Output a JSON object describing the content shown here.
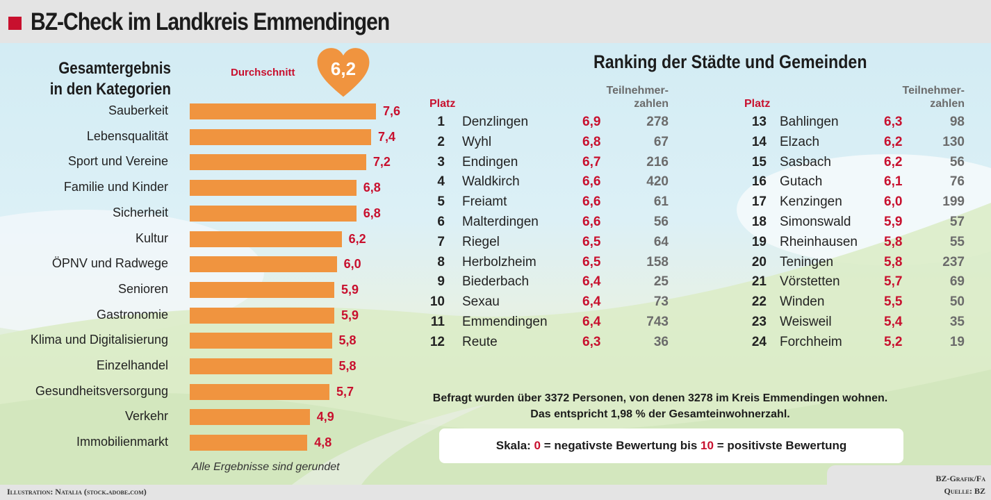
{
  "header": {
    "title": "BZ-Check im Landkreis Emmendingen"
  },
  "left_panel": {
    "title_line1": "Gesamtergebnis",
    "title_line2": "in den Kategorien",
    "average_label": "Durchschnitt",
    "average_value": "6,2",
    "note": "Alle Ergebnisse sind gerundet"
  },
  "chart_data": {
    "type": "bar",
    "orientation": "horizontal",
    "title": "Gesamtergebnis in den Kategorien",
    "xlabel": "",
    "ylabel": "",
    "xlim": [
      0,
      10
    ],
    "average": 6.2,
    "categories": [
      "Sauberkeit",
      "Lebensqualität",
      "Sport und Vereine",
      "Familie und Kinder",
      "Sicherheit",
      "Kultur",
      "ÖPNV und Radwege",
      "Senioren",
      "Gastronomie",
      "Klima und Digitalisierung",
      "Einzelhandel",
      "Gesundheitsversorgung",
      "Verkehr",
      "Immobilienmarkt"
    ],
    "values": [
      7.6,
      7.4,
      7.2,
      6.8,
      6.8,
      6.2,
      6.0,
      5.9,
      5.9,
      5.8,
      5.8,
      5.7,
      4.9,
      4.8
    ],
    "value_labels": [
      "7,6",
      "7,4",
      "7,2",
      "6,8",
      "6,8",
      "6,2",
      "6,0",
      "5,9",
      "5,9",
      "5,8",
      "5,8",
      "5,7",
      "4,9",
      "4,8"
    ],
    "bar_color": "#f0943f",
    "label_color": "#c8102e"
  },
  "ranking": {
    "title": "Ranking der Städte und Gemeinden",
    "platz_label": "Platz",
    "participants_label_line1": "Teilnehmer-",
    "participants_label_line2": "zahlen",
    "columns": [
      [
        {
          "rank": "1",
          "name": "Denzlingen",
          "score": "6,9",
          "participants": "278"
        },
        {
          "rank": "2",
          "name": "Wyhl",
          "score": "6,8",
          "participants": "67"
        },
        {
          "rank": "3",
          "name": "Endingen",
          "score": "6,7",
          "participants": "216"
        },
        {
          "rank": "4",
          "name": "Waldkirch",
          "score": "6,6",
          "participants": "420"
        },
        {
          "rank": "5",
          "name": "Freiamt",
          "score": "6,6",
          "participants": "61"
        },
        {
          "rank": "6",
          "name": "Malterdingen",
          "score": "6,6",
          "participants": "56"
        },
        {
          "rank": "7",
          "name": "Riegel",
          "score": "6,5",
          "participants": "64"
        },
        {
          "rank": "8",
          "name": "Herbolzheim",
          "score": "6,5",
          "participants": "158"
        },
        {
          "rank": "9",
          "name": "Biederbach",
          "score": "6,4",
          "participants": "25"
        },
        {
          "rank": "10",
          "name": "Sexau",
          "score": "6,4",
          "participants": "73"
        },
        {
          "rank": "11",
          "name": "Emmendingen",
          "score": "6,4",
          "participants": "743"
        },
        {
          "rank": "12",
          "name": "Reute",
          "score": "6,3",
          "participants": "36"
        }
      ],
      [
        {
          "rank": "13",
          "name": "Bahlingen",
          "score": "6,3",
          "participants": "98"
        },
        {
          "rank": "14",
          "name": "Elzach",
          "score": "6,2",
          "participants": "130"
        },
        {
          "rank": "15",
          "name": "Sasbach",
          "score": "6,2",
          "participants": "56"
        },
        {
          "rank": "16",
          "name": "Gutach",
          "score": "6,1",
          "participants": "76"
        },
        {
          "rank": "17",
          "name": "Kenzingen",
          "score": "6,0",
          "participants": "199"
        },
        {
          "rank": "18",
          "name": "Simonswald",
          "score": "5,9",
          "participants": "57"
        },
        {
          "rank": "19",
          "name": "Rheinhausen",
          "score": "5,8",
          "participants": "55"
        },
        {
          "rank": "20",
          "name": "Teningen",
          "score": "5,8",
          "participants": "237"
        },
        {
          "rank": "21",
          "name": "Vörstetten",
          "score": "5,7",
          "participants": "69"
        },
        {
          "rank": "22",
          "name": "Winden",
          "score": "5,5",
          "participants": "50"
        },
        {
          "rank": "23",
          "name": "Weisweil",
          "score": "5,4",
          "participants": "35"
        },
        {
          "rank": "24",
          "name": "Forchheim",
          "score": "5,2",
          "participants": "19"
        }
      ]
    ]
  },
  "info": {
    "line1": "Befragt wurden über 3372 Personen, von denen 3278 im Kreis Emmendingen wohnen.",
    "line2": "Das entspricht  1,98 % der Gesamteinwohnerzahl."
  },
  "scale": {
    "prefix": "Skala: ",
    "min": "0",
    "min_text": " = negativste Bewertung bis ",
    "max": "10",
    "max_text": " = positivste Bewertung"
  },
  "credits": {
    "illustration": "Illustration: Natalia (stock.adobe.com)",
    "graphic": "BZ-Grafik/Fa",
    "source": "Quelle: BZ"
  },
  "colors": {
    "accent_red": "#c8102e",
    "bar_orange": "#f0943f"
  }
}
